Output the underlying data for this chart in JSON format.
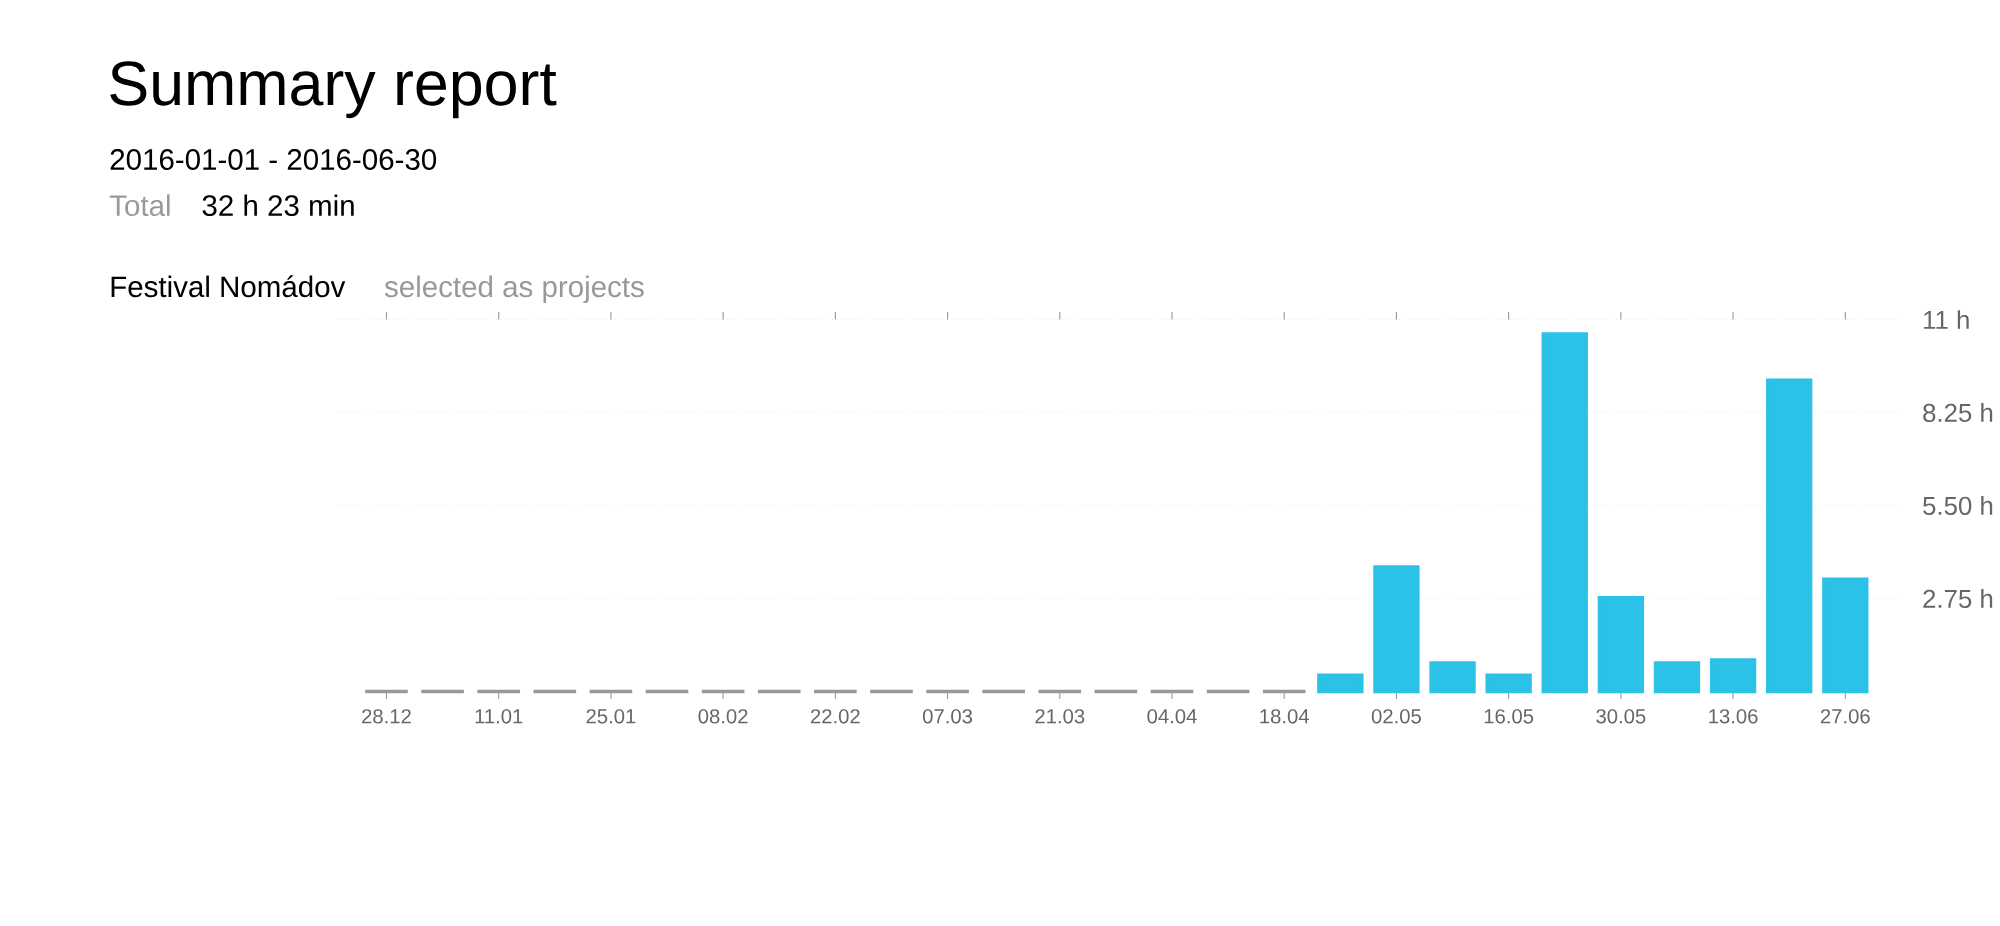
{
  "chart_data": {
    "type": "bar",
    "title": "Summary report",
    "subtitle": "2016-01-01  -  2016-06-30",
    "annotations": [
      "Total",
      "32 h 23 min",
      "Festival Nomádov",
      "selected as projects"
    ],
    "categories": [
      "28.12",
      null,
      "11.01",
      null,
      "25.01",
      null,
      "08.02",
      null,
      "22.02",
      null,
      "07.03",
      null,
      "21.03",
      null,
      "04.04",
      null,
      "18.04",
      null,
      "02.05",
      null,
      "16.05",
      null,
      "30.05",
      null,
      "13.06",
      null,
      "27.06"
    ],
    "values": [
      0,
      0,
      0,
      0,
      0,
      0,
      0,
      0,
      0,
      0,
      0,
      0,
      0,
      0,
      0,
      0,
      0,
      0.48,
      3.68,
      0.84,
      0.48,
      10.57,
      2.77,
      0.84,
      0.93,
      9.2,
      3.32
    ],
    "colors": [
      "#999999",
      "#999999",
      "#999999",
      "#999999",
      "#999999",
      "#999999",
      "#999999",
      "#999999",
      "#999999",
      "#999999",
      "#999999",
      "#999999",
      "#999999",
      "#999999",
      "#999999",
      "#999999",
      "#999999",
      "#2cc1e6",
      "#2cc1e6",
      "#2cc1e6",
      "#2cc1e6",
      "#2cc1e6",
      "#2cc1e6",
      "#2cc1e6",
      "#2cc1e6",
      "#2cc1e6",
      "#2cc1e6"
    ],
    "ylim": [
      0,
      11
    ],
    "yticks": [
      {
        "value": 2.75,
        "label": "2.75 h"
      },
      {
        "value": 5.5,
        "label": "5.50 h"
      },
      {
        "value": 8.25,
        "label": "8.25 h"
      },
      {
        "value": 11,
        "label": "11 h"
      }
    ],
    "grid": "y"
  }
}
